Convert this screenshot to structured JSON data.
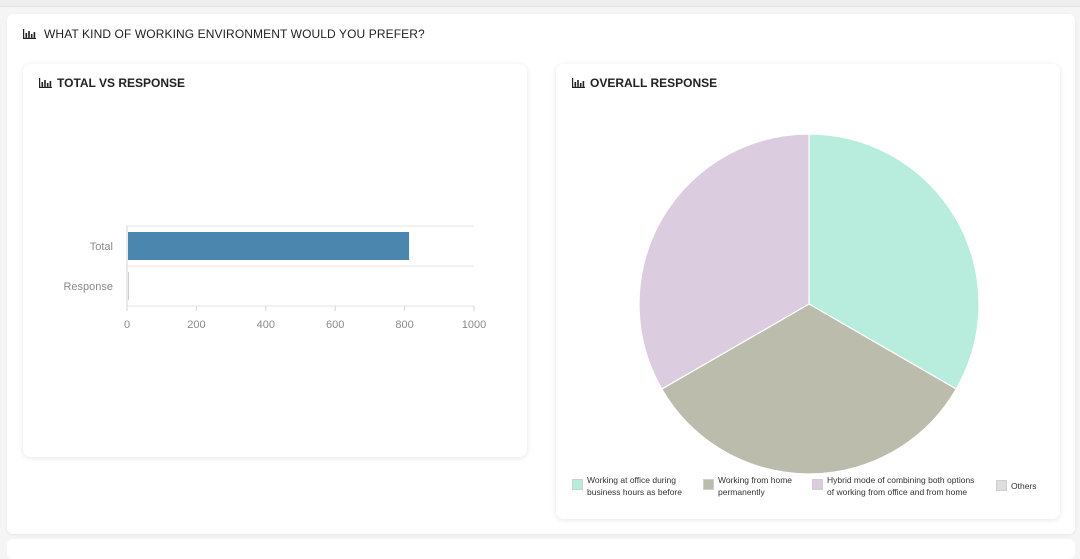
{
  "question": {
    "title": "WHAT KIND OF WORKING ENVIRONMENT WOULD YOU PREFER?",
    "icon": "bar-chart-icon"
  },
  "panels": {
    "left": {
      "title": "TOTAL VS RESPONSE",
      "icon": "bar-chart-icon"
    },
    "right": {
      "title": "OVERALL RESPONSE",
      "icon": "bar-chart-icon"
    }
  },
  "chart_data": [
    {
      "type": "bar",
      "orientation": "horizontal",
      "title": "TOTAL VS RESPONSE",
      "categories": [
        "Total",
        "Response"
      ],
      "values": [
        810,
        3
      ],
      "xlim": [
        0,
        1000
      ],
      "xticks": [
        "0",
        "200",
        "400",
        "600",
        "800",
        "1000"
      ],
      "grid": true,
      "colors": [
        "#4a86ad",
        "#cfcfcf"
      ]
    },
    {
      "type": "pie",
      "title": "OVERALL RESPONSE",
      "categories": [
        "Working at office during business hours as before",
        "Working from home permanently",
        "Hybrid mode of combining both options of working from office and from home",
        "Others"
      ],
      "values": [
        1,
        1,
        1,
        0
      ],
      "colors": [
        "#b8ecdd",
        "#bbbcab",
        "#dccce0",
        "#dedede"
      ],
      "legend_position": "bottom",
      "legend_lines": [
        [
          "Working at office during",
          "business hours as before"
        ],
        [
          "Working from home",
          "permanently"
        ],
        [
          "Hybrid mode of combining both options",
          "of working from office and from home"
        ],
        [
          "Others"
        ]
      ]
    }
  ]
}
